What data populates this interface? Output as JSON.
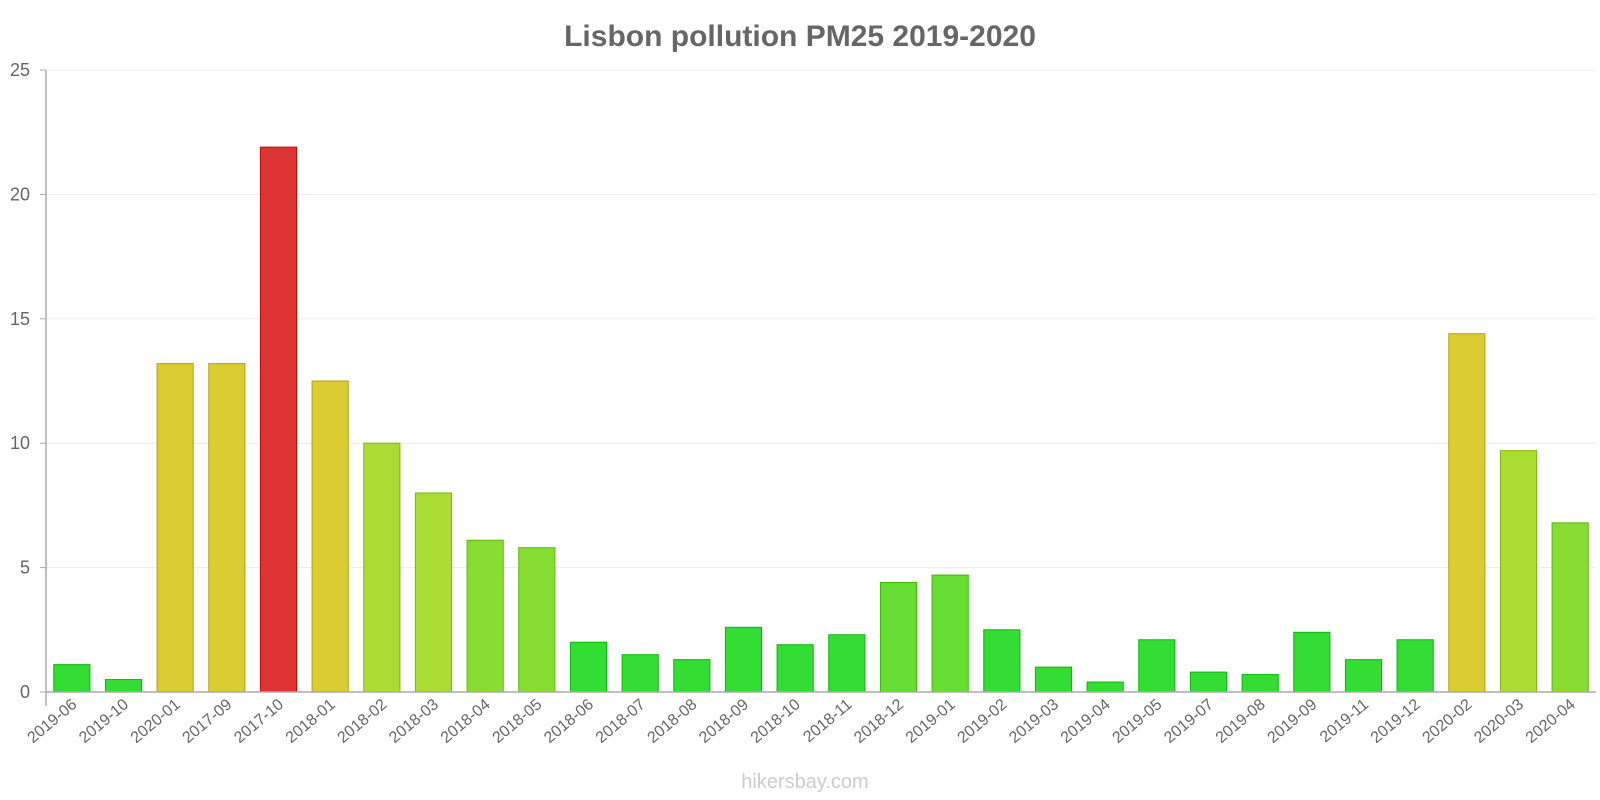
{
  "chart_data": {
    "type": "bar",
    "title": "Lisbon pollution PM25 2019-2020",
    "xlabel": "",
    "ylabel": "",
    "ylim": [
      0,
      25
    ],
    "yticks": [
      "0",
      "5",
      "10",
      "15",
      "20",
      "25"
    ],
    "grid": true,
    "categories": [
      "2019-06",
      "2019-10",
      "2020-01",
      "2017-09",
      "2017-10",
      "2018-01",
      "2018-02",
      "2018-03",
      "2018-04",
      "2018-05",
      "2018-06",
      "2018-07",
      "2018-08",
      "2018-09",
      "2018-10",
      "2018-11",
      "2018-12",
      "2019-01",
      "2019-02",
      "2019-03",
      "2019-04",
      "2019-05",
      "2019-07",
      "2019-08",
      "2019-09",
      "2019-11",
      "2019-12",
      "2020-02",
      "2020-03",
      "2020-04"
    ],
    "values": [
      1.1,
      0.5,
      13.2,
      13.2,
      21.9,
      12.5,
      10.0,
      8.0,
      6.1,
      5.8,
      2.0,
      1.5,
      1.3,
      2.6,
      1.9,
      2.3,
      4.4,
      4.7,
      2.5,
      1.0,
      0.4,
      2.1,
      0.8,
      0.7,
      2.4,
      1.3,
      2.1,
      14.4,
      9.7,
      6.8
    ],
    "colors": [
      "#33dd33",
      "#33dd33",
      "#dbcc33",
      "#dbcc33",
      "#dd3333",
      "#dbcc33",
      "#aadd33",
      "#aadd33",
      "#88dd33",
      "#88dd33",
      "#33dd33",
      "#33dd33",
      "#33dd33",
      "#33dd33",
      "#33dd33",
      "#33dd33",
      "#66dd33",
      "#66dd33",
      "#33dd33",
      "#33dd33",
      "#33dd33",
      "#33dd33",
      "#33dd33",
      "#33dd33",
      "#33dd33",
      "#33dd33",
      "#33dd33",
      "#dbcc33",
      "#aadd33",
      "#88dd33"
    ]
  },
  "watermark": "hikersbay.com"
}
